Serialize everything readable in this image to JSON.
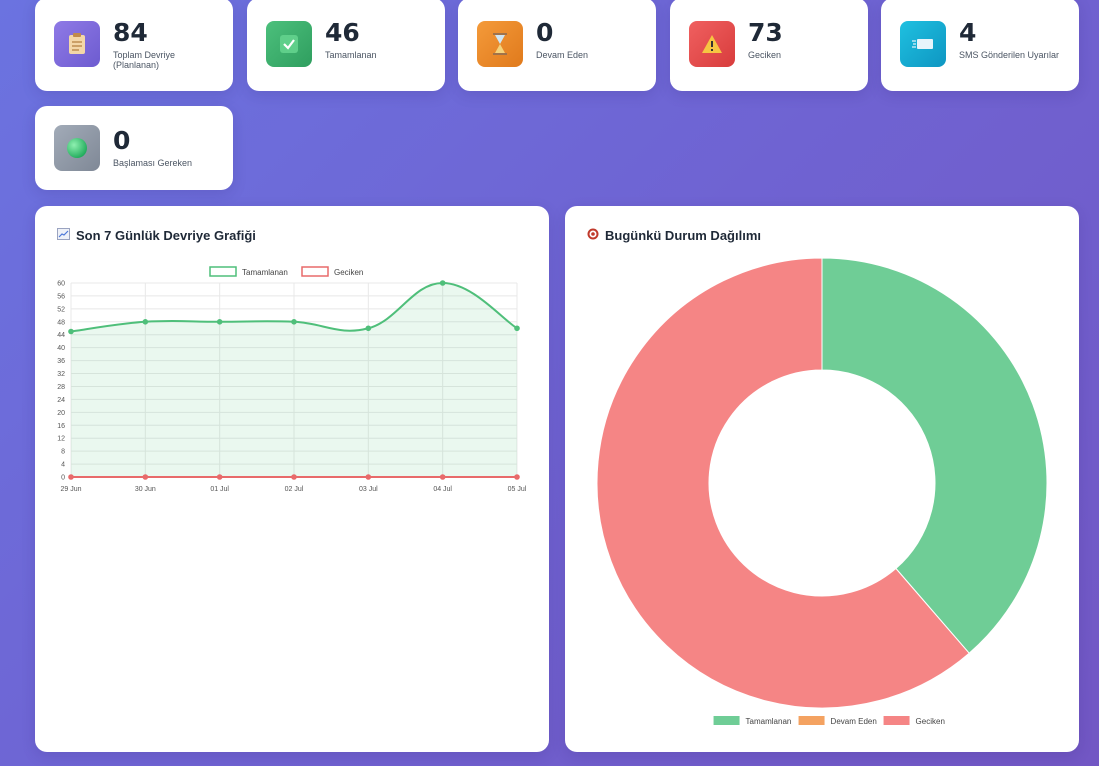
{
  "stats": [
    {
      "value": "84",
      "label": "Toplam Devriye (Planlanan)",
      "icon": "clipboard-icon"
    },
    {
      "value": "46",
      "label": "Tamamlanan",
      "icon": "check-icon"
    },
    {
      "value": "0",
      "label": "Devam Eden",
      "icon": "hourglass-icon"
    },
    {
      "value": "73",
      "label": "Geciken",
      "icon": "warning-icon"
    },
    {
      "value": "4",
      "label": "SMS Gönderilen Uyarılar",
      "icon": "sms-icon"
    },
    {
      "value": "0",
      "label": "Başlaması Gereken",
      "icon": "green-circle-icon"
    }
  ],
  "line_panel": {
    "title": "Son 7 Günlük Devriye Grafiği",
    "icon": "chart-icon"
  },
  "donut_panel": {
    "title": "Bugünkü Durum Dağılımı",
    "icon": "target-icon"
  },
  "colors": {
    "green": "#6fcd96",
    "orange": "#f4a261",
    "red": "#f58585"
  },
  "chart_data": [
    {
      "type": "line",
      "categories": [
        "29 Jun",
        "30 Jun",
        "01 Jul",
        "02 Jul",
        "03 Jul",
        "04 Jul",
        "05 Jul"
      ],
      "series": [
        {
          "name": "Tamamlanan",
          "values": [
            45,
            48,
            48,
            48,
            46,
            60,
            46
          ]
        },
        {
          "name": "Geciken",
          "values": [
            0,
            0,
            0,
            0,
            0,
            0,
            0
          ]
        }
      ],
      "ylim": [
        0,
        60
      ],
      "yticks": [
        0,
        4,
        8,
        12,
        16,
        20,
        24,
        28,
        32,
        36,
        40,
        44,
        48,
        52,
        56,
        60
      ],
      "legend": "top"
    },
    {
      "type": "pie",
      "labels": [
        "Tamamlanan",
        "Devam Eden",
        "Geciken"
      ],
      "values": [
        46,
        0,
        73
      ],
      "legend": "bottom"
    }
  ]
}
